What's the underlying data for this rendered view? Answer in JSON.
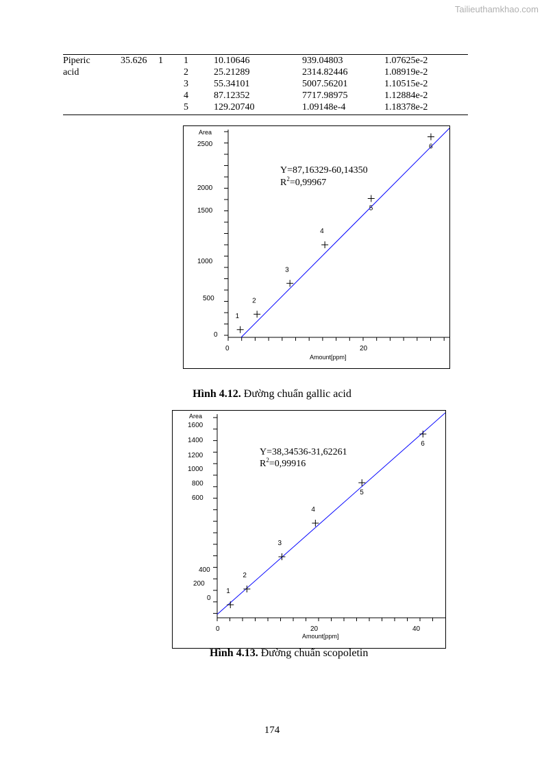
{
  "watermark": "Tailieuthamkhao.com",
  "table": {
    "compound_line1": "Piperic",
    "compound_line2": "acid",
    "rt": "35.626",
    "col3": "1",
    "rows": [
      [
        "1",
        "10.10646",
        "939.04803",
        "1.07625e-2"
      ],
      [
        "2",
        "25.21289",
        "2314.82446",
        "1.08919e-2"
      ],
      [
        "3",
        "55.34101",
        "5007.56201",
        "1.10515e-2"
      ],
      [
        "4",
        "87.12352",
        "7717.98975",
        "1.12884e-2"
      ],
      [
        "5",
        "129.20740",
        "1.09148e-4",
        "1.18378e-2"
      ]
    ]
  },
  "figures": [
    {
      "caption_bold": "Hình 4.12.",
      "caption_text": " Đường chuẩn gallic acid",
      "equation": "Y=87,16329-60,14350",
      "r2_label": "R",
      "r2_sup": "2",
      "r2_value": "=0,99967"
    },
    {
      "caption_bold": "Hình 4.13.",
      "caption_text": " Đường chuẩn scopoletin",
      "equation": "Y=38,34536-31,62261",
      "r2_label": "R",
      "r2_sup": "2",
      "r2_value": "=0,99916"
    }
  ],
  "chart_data": [
    {
      "type": "scatter",
      "title": "",
      "xlabel": "Amount[ppm]",
      "ylabel": "Area",
      "y_tick_labels": [
        "2500",
        "2000",
        "1500",
        "1000",
        "500",
        "0"
      ],
      "x_tick_labels": [
        "0",
        "20"
      ],
      "points": [
        {
          "label": "1",
          "x": 1.8,
          "y": 100
        },
        {
          "label": "2",
          "x": 4.3,
          "y": 300
        },
        {
          "label": "3",
          "x": 9.2,
          "y": 700
        },
        {
          "label": "4",
          "x": 14.4,
          "y": 1200
        },
        {
          "label": "5",
          "x": 21.3,
          "y": 1800
        },
        {
          "label": "6",
          "x": 30.2,
          "y": 2600
        }
      ],
      "line_color": "#0000ff",
      "marker_color": "#000000"
    },
    {
      "type": "scatter",
      "title": "",
      "xlabel": "Amount[ppm]",
      "ylabel": "Area",
      "y_tick_labels": [
        "1600",
        "1400",
        "1200",
        "1000",
        "800",
        "600",
        "400",
        "200",
        "0"
      ],
      "x_tick_labels": [
        "0",
        "20",
        "40"
      ],
      "points": [
        {
          "label": "1",
          "x": 2.5,
          "y": 100
        },
        {
          "label": "2",
          "x": 5.8,
          "y": 300
        },
        {
          "label": "3",
          "x": 12.8,
          "y": 500
        },
        {
          "label": "4",
          "x": 19.5,
          "y": 700
        },
        {
          "label": "5",
          "x": 28.8,
          "y": 1000
        },
        {
          "label": "6",
          "x": 41.0,
          "y": 1500
        }
      ],
      "line_color": "#0000ff",
      "marker_color": "#000000"
    }
  ],
  "page_number": "174"
}
